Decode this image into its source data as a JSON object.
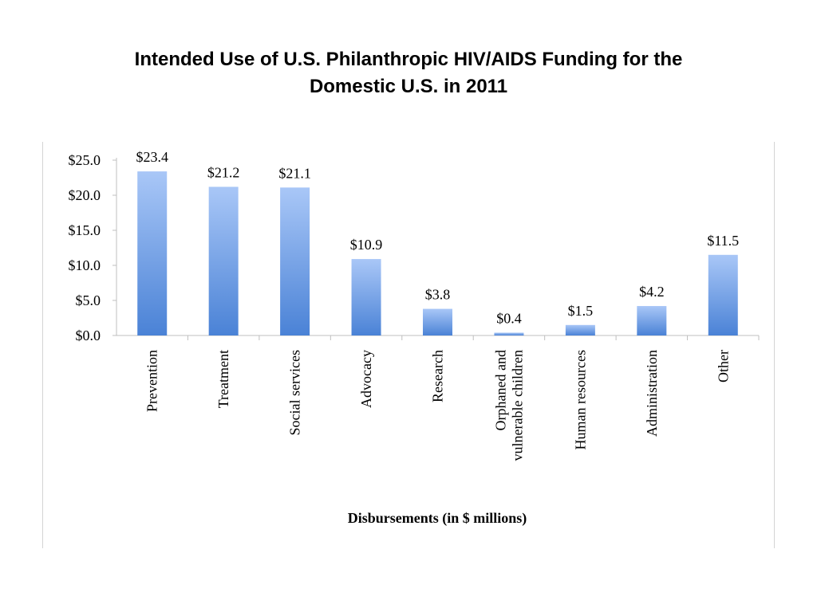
{
  "title_lines": [
    "Intended Use of U.S. Philanthropic HIV/AIDS Funding for the",
    "Domestic U.S. in 2011"
  ],
  "chart_data": {
    "type": "bar",
    "title": "Intended Use of U.S. Philanthropic HIV/AIDS Funding for the Domestic U.S. in 2011",
    "xlabel": "Disbursements (in $ millions)",
    "ylabel": "",
    "ylim": [
      0,
      25
    ],
    "yticks": [
      0,
      5,
      10,
      15,
      20,
      25
    ],
    "ytick_labels": [
      "$0.0",
      "$5.0",
      "$10.0",
      "$15.0",
      "$20.0",
      "$25.0"
    ],
    "categories": [
      "Prevention",
      "Treatment",
      "Social services",
      "Advocacy",
      "Research",
      "Orphaned and vulnerable children",
      "Human resources",
      "Administration",
      "Other"
    ],
    "category_label_lines": [
      [
        "Prevention"
      ],
      [
        "Treatment"
      ],
      [
        "Social services"
      ],
      [
        "Advocacy"
      ],
      [
        "Research"
      ],
      [
        "Orphaned and",
        "vulnerable children"
      ],
      [
        "Human resources"
      ],
      [
        "Administration"
      ],
      [
        "Other"
      ]
    ],
    "values": [
      23.4,
      21.2,
      21.1,
      10.9,
      3.8,
      0.4,
      1.5,
      4.2,
      11.5
    ],
    "data_labels": [
      "$23.4",
      "$21.2",
      "$21.1",
      "$10.9",
      "$3.8",
      "$0.4",
      "$1.5",
      "$4.2",
      "$11.5"
    ],
    "grid": false,
    "legend": "none",
    "bar_color_top": "#a9c7f7",
    "bar_color_bottom": "#4a82d6"
  }
}
